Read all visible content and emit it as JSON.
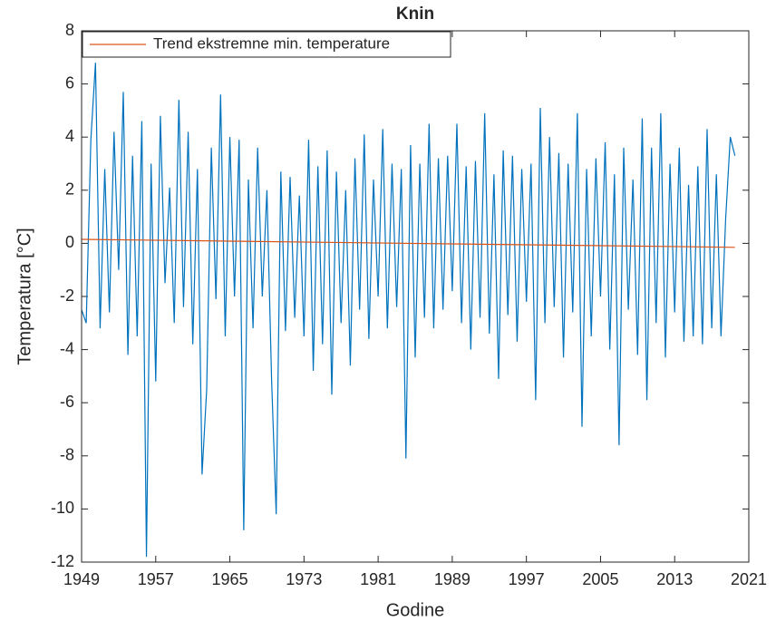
{
  "chart_data": {
    "type": "line",
    "title": "Knin",
    "xlabel": "Godine",
    "ylabel": "Temperatura [°C]",
    "xlim": [
      1949,
      2021
    ],
    "xticks": [
      1949,
      1957,
      1965,
      1973,
      1981,
      1989,
      1997,
      2005,
      2013,
      2021
    ],
    "ylim": [
      -12,
      8
    ],
    "yticks": [
      -12,
      -10,
      -8,
      -6,
      -4,
      -2,
      0,
      2,
      4,
      6,
      8
    ],
    "legend": "northwest",
    "grid": false,
    "series": [
      {
        "color": "#0072bd",
        "x": [
          1949,
          1949.5,
          1950,
          1950.5,
          1951,
          1951.5,
          1952,
          1952.5,
          1953,
          1953.5,
          1954,
          1954.5,
          1955,
          1955.5,
          1956,
          1956.5,
          1957,
          1957.5,
          1958,
          1958.5,
          1959,
          1959.5,
          1960,
          1960.5,
          1961,
          1961.5,
          1962,
          1962.5,
          1963,
          1963.5,
          1964,
          1964.5,
          1965,
          1965.5,
          1966,
          1966.5,
          1967,
          1967.5,
          1968,
          1968.5,
          1969,
          1969.5,
          1970,
          1970.5,
          1971,
          1971.5,
          1972,
          1972.5,
          1973,
          1973.5,
          1974,
          1974.5,
          1975,
          1975.5,
          1976,
          1976.5,
          1977,
          1977.5,
          1978,
          1978.5,
          1979,
          1979.5,
          1980,
          1980.5,
          1981,
          1981.5,
          1982,
          1982.5,
          1983,
          1983.5,
          1984,
          1984.5,
          1985,
          1985.5,
          1986,
          1986.5,
          1987,
          1987.5,
          1988,
          1988.5,
          1989,
          1989.5,
          1990,
          1990.5,
          1991,
          1991.5,
          1992,
          1992.5,
          1993,
          1993.5,
          1994,
          1994.5,
          1995,
          1995.5,
          1996,
          1996.5,
          1997,
          1997.5,
          1998,
          1998.5,
          1999,
          1999.5,
          2000,
          2000.5,
          2001,
          2001.5,
          2002,
          2002.5,
          2003,
          2003.5,
          2004,
          2004.5,
          2005,
          2005.5,
          2006,
          2006.5,
          2007,
          2007.5,
          2008,
          2008.5,
          2009,
          2009.5,
          2010,
          2010.5,
          2011,
          2011.5,
          2012,
          2012.5,
          2013,
          2013.5,
          2014,
          2014.5,
          2015,
          2015.5,
          2016,
          2016.5,
          2017,
          2017.5,
          2018,
          2018.5,
          2019,
          2019.5
        ],
        "values": [
          -2.5,
          -3.0,
          3.9,
          6.8,
          -3.2,
          2.8,
          -2.6,
          4.2,
          -1.0,
          5.7,
          -4.2,
          3.3,
          -3.5,
          4.6,
          -11.8,
          3.0,
          -5.2,
          4.8,
          -1.5,
          2.1,
          -3.0,
          5.4,
          -2.4,
          4.2,
          -3.8,
          2.8,
          -8.7,
          -5.5,
          3.6,
          -2.1,
          5.6,
          -3.5,
          4.0,
          -2.0,
          3.9,
          -10.8,
          2.4,
          -3.2,
          3.6,
          -2.0,
          2.0,
          -5.1,
          -10.2,
          2.7,
          -3.3,
          2.5,
          -2.8,
          1.8,
          -3.5,
          3.9,
          -4.8,
          2.9,
          -3.8,
          3.5,
          -5.7,
          2.7,
          -3.0,
          2.0,
          -4.6,
          3.2,
          -2.5,
          4.1,
          -3.6,
          2.4,
          -2.0,
          4.3,
          -3.2,
          3.0,
          -2.4,
          2.8,
          -8.1,
          3.7,
          -4.3,
          3.0,
          -2.8,
          4.5,
          -3.2,
          3.2,
          -2.5,
          3.3,
          -1.8,
          4.5,
          -3.0,
          2.9,
          -4.0,
          3.1,
          -2.8,
          4.9,
          -3.4,
          2.6,
          -5.1,
          3.5,
          -2.7,
          3.3,
          -3.7,
          2.8,
          -2.2,
          3.0,
          -5.9,
          5.1,
          -3.0,
          4.0,
          -2.4,
          3.4,
          -4.3,
          3.0,
          -2.6,
          4.9,
          -6.9,
          2.8,
          -3.5,
          3.2,
          -2.0,
          3.8,
          -4.0,
          2.6,
          -7.6,
          3.6,
          -2.5,
          2.4,
          -4.2,
          4.7,
          -5.9,
          3.6,
          -3.0,
          4.9,
          -4.3,
          3.0,
          -2.6,
          3.6,
          -3.7,
          2.2,
          -3.5,
          2.9,
          -3.8,
          4.3,
          -3.2,
          2.6,
          -3.5,
          0.9,
          4.0,
          3.3
        ]
      },
      {
        "name": "Trend ekstremne min. temperature",
        "color": "#d95319",
        "x": [
          1949,
          2019.5
        ],
        "values": [
          0.15,
          -0.15
        ]
      }
    ]
  }
}
